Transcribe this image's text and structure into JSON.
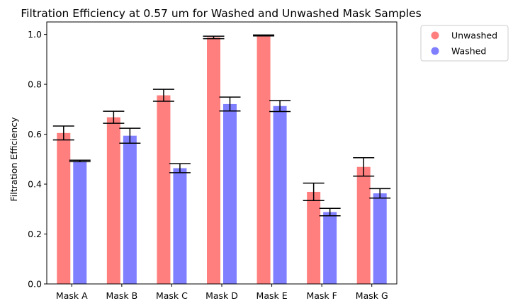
{
  "chart_data": {
    "type": "bar",
    "title": "Filtration Efficiency at 0.57 um for Washed and Unwashed Mask Samples",
    "xlabel": "",
    "ylabel": "Filtration Efficiency",
    "ylim": [
      0,
      1.05
    ],
    "yticks": [
      "0.0",
      "0.2",
      "0.4",
      "0.6",
      "0.8",
      "1.0"
    ],
    "categories": [
      "Mask A",
      "Mask B",
      "Mask C",
      "Mask D",
      "Mask E",
      "Mask F",
      "Mask G"
    ],
    "legend_position": "outside-top-right",
    "grid": false,
    "series": [
      {
        "name": "Unwashed",
        "color": "#ff7f7f",
        "values": [
          0.605,
          0.668,
          0.756,
          0.988,
          0.996,
          0.369,
          0.469
        ],
        "errors": [
          0.028,
          0.024,
          0.024,
          0.005,
          0.002,
          0.035,
          0.037
        ]
      },
      {
        "name": "Washed",
        "color": "#7f7fff",
        "values": [
          0.493,
          0.594,
          0.464,
          0.721,
          0.713,
          0.288,
          0.363
        ],
        "errors": [
          0.003,
          0.03,
          0.018,
          0.028,
          0.022,
          0.015,
          0.019
        ]
      }
    ]
  }
}
